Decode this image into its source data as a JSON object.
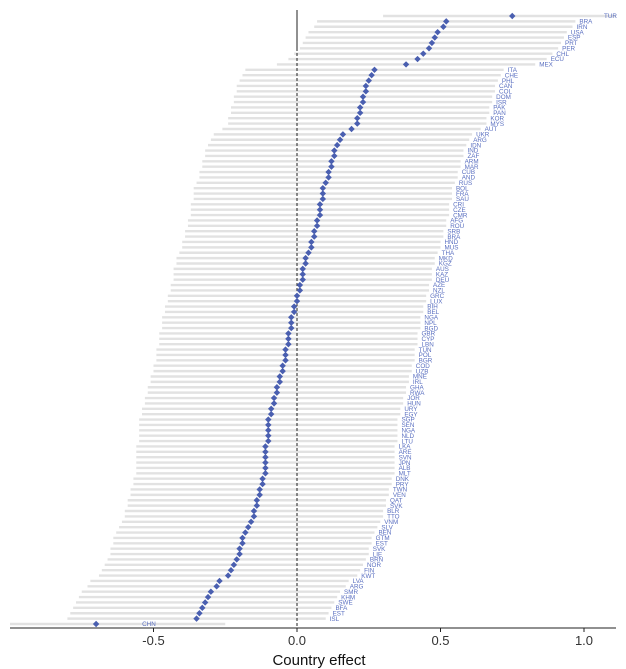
{
  "chart_data": {
    "type": "scatter",
    "xlabel": "Country effect",
    "xlim": [
      -1.0,
      1.12
    ],
    "x_ticks": [
      "-0.5",
      "0.0",
      "0.5",
      "1.0"
    ],
    "x_tick_values": [
      -0.5,
      0.0,
      0.5,
      1.0
    ],
    "reference_line": 0,
    "grid": false,
    "colors": {
      "point": "#4a5fb0",
      "interval": "#e2e2e2",
      "label": "#5a6fc0",
      "axis": "#222222"
    },
    "points": [
      {
        "label": "TUR",
        "value": 0.75
      },
      {
        "label": "BRA",
        "value": 0.52
      },
      {
        "label": "IRN",
        "value": 0.51
      },
      {
        "label": "USA",
        "value": 0.49
      },
      {
        "label": "ESP",
        "value": 0.48
      },
      {
        "label": "PRT",
        "value": 0.47
      },
      {
        "label": "PER",
        "value": 0.46
      },
      {
        "label": "CHL",
        "value": 0.44
      },
      {
        "label": "ECU",
        "value": 0.42
      },
      {
        "label": "MEX",
        "value": 0.38
      },
      {
        "label": "ITA",
        "value": 0.27
      },
      {
        "label": "CHE",
        "value": 0.26
      },
      {
        "label": "PHL",
        "value": 0.25
      },
      {
        "label": "CAN",
        "value": 0.24
      },
      {
        "label": "COL",
        "value": 0.24
      },
      {
        "label": "DOM",
        "value": 0.23
      },
      {
        "label": "ISR",
        "value": 0.23
      },
      {
        "label": "PAK",
        "value": 0.22
      },
      {
        "label": "PAN",
        "value": 0.22
      },
      {
        "label": "KOR",
        "value": 0.21
      },
      {
        "label": "MYS",
        "value": 0.21
      },
      {
        "label": "AUT",
        "value": 0.19
      },
      {
        "label": "UKR",
        "value": 0.16
      },
      {
        "label": "ARG",
        "value": 0.15
      },
      {
        "label": "IDN",
        "value": 0.14
      },
      {
        "label": "IND",
        "value": 0.13
      },
      {
        "label": "ZAF",
        "value": 0.13
      },
      {
        "label": "ARM",
        "value": 0.12
      },
      {
        "label": "MAR",
        "value": 0.12
      },
      {
        "label": "CUB",
        "value": 0.11
      },
      {
        "label": "AND",
        "value": 0.11
      },
      {
        "label": "RUS",
        "value": 0.1
      },
      {
        "label": "BOL",
        "value": 0.09
      },
      {
        "label": "FRA",
        "value": 0.09
      },
      {
        "label": "SAU",
        "value": 0.09
      },
      {
        "label": "CRI",
        "value": 0.08
      },
      {
        "label": "CZE",
        "value": 0.08
      },
      {
        "label": "CMR",
        "value": 0.08
      },
      {
        "label": "AFG",
        "value": 0.07
      },
      {
        "label": "ROU",
        "value": 0.07
      },
      {
        "label": "SRB",
        "value": 0.06
      },
      {
        "label": "BRA",
        "value": 0.06
      },
      {
        "label": "HND",
        "value": 0.05
      },
      {
        "label": "MUS",
        "value": 0.05
      },
      {
        "label": "THA",
        "value": 0.04
      },
      {
        "label": "MKD",
        "value": 0.03
      },
      {
        "label": "KGZ",
        "value": 0.03
      },
      {
        "label": "AUS",
        "value": 0.02
      },
      {
        "label": "KAZ",
        "value": 0.02
      },
      {
        "label": "DEU",
        "value": 0.02
      },
      {
        "label": "AZE",
        "value": 0.01
      },
      {
        "label": "NZL",
        "value": 0.01
      },
      {
        "label": "GRC",
        "value": 0.0
      },
      {
        "label": "LUX",
        "value": 0.0
      },
      {
        "label": "BIH",
        "value": -0.01
      },
      {
        "label": "BEL",
        "value": -0.01
      },
      {
        "label": "NGA",
        "value": -0.02
      },
      {
        "label": "NPL",
        "value": -0.02
      },
      {
        "label": "BGD",
        "value": -0.02
      },
      {
        "label": "GBR",
        "value": -0.03
      },
      {
        "label": "CYP",
        "value": -0.03
      },
      {
        "label": "LBN",
        "value": -0.03
      },
      {
        "label": "TUN",
        "value": -0.04
      },
      {
        "label": "POL",
        "value": -0.04
      },
      {
        "label": "BGR",
        "value": -0.04
      },
      {
        "label": "COD",
        "value": -0.05
      },
      {
        "label": "UZB",
        "value": -0.05
      },
      {
        "label": "MNE",
        "value": -0.06
      },
      {
        "label": "IRL",
        "value": -0.06
      },
      {
        "label": "GHA",
        "value": -0.07
      },
      {
        "label": "RWA",
        "value": -0.07
      },
      {
        "label": "JOR",
        "value": -0.08
      },
      {
        "label": "HUN",
        "value": -0.08
      },
      {
        "label": "URY",
        "value": -0.09
      },
      {
        "label": "EGY",
        "value": -0.09
      },
      {
        "label": "SGP",
        "value": -0.1
      },
      {
        "label": "SEN",
        "value": -0.1
      },
      {
        "label": "NGA",
        "value": -0.1
      },
      {
        "label": "NLD",
        "value": -0.1
      },
      {
        "label": "LTU",
        "value": -0.1
      },
      {
        "label": "LKA",
        "value": -0.11
      },
      {
        "label": "ARE",
        "value": -0.11
      },
      {
        "label": "SVN",
        "value": -0.11
      },
      {
        "label": "JPN",
        "value": -0.11
      },
      {
        "label": "ALB",
        "value": -0.11
      },
      {
        "label": "MLT",
        "value": -0.11
      },
      {
        "label": "DNK",
        "value": -0.12
      },
      {
        "label": "PRY",
        "value": -0.12
      },
      {
        "label": "TWN",
        "value": -0.13
      },
      {
        "label": "VEN",
        "value": -0.13
      },
      {
        "label": "QAT",
        "value": -0.14
      },
      {
        "label": "SVK",
        "value": -0.14
      },
      {
        "label": "BLR",
        "value": -0.15
      },
      {
        "label": "TTO",
        "value": -0.15
      },
      {
        "label": "VNM",
        "value": -0.16
      },
      {
        "label": "SLV",
        "value": -0.17
      },
      {
        "label": "BEN",
        "value": -0.18
      },
      {
        "label": "GTM",
        "value": -0.19
      },
      {
        "label": "EST",
        "value": -0.19
      },
      {
        "label": "SVK",
        "value": -0.2
      },
      {
        "label": "LIE",
        "value": -0.2
      },
      {
        "label": "BRN",
        "value": -0.21
      },
      {
        "label": "NOR",
        "value": -0.22
      },
      {
        "label": "FIN",
        "value": -0.23
      },
      {
        "label": "KWT",
        "value": -0.24
      },
      {
        "label": "LVA",
        "value": -0.27
      },
      {
        "label": "ARG",
        "value": -0.28
      },
      {
        "label": "SMR",
        "value": -0.3
      },
      {
        "label": "KHM",
        "value": -0.31
      },
      {
        "label": "SWE",
        "value": -0.32
      },
      {
        "label": "BFA",
        "value": -0.33
      },
      {
        "label": "EST",
        "value": -0.34
      },
      {
        "label": "ISL",
        "value": -0.35
      },
      {
        "label": "CHN",
        "value": -0.7
      }
    ]
  }
}
